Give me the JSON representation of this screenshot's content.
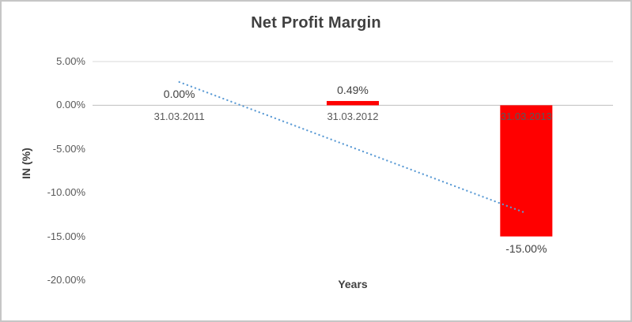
{
  "chart_data": {
    "type": "bar",
    "title": "Net Profit Margin",
    "xlabel": "Years",
    "ylabel": "IN (%)",
    "categories": [
      "31.03.2011",
      "31.03.2012",
      "31.03.2013"
    ],
    "values": [
      0.0,
      0.49,
      -15.0
    ],
    "data_labels": [
      "0.00%",
      "0.49%",
      "-15.00%"
    ],
    "ylim": [
      -20,
      5
    ],
    "y_ticks": [
      {
        "value": 5,
        "label": "5.00%"
      },
      {
        "value": 0,
        "label": "0.00%"
      },
      {
        "value": -5,
        "label": "-5.00%"
      },
      {
        "value": -10,
        "label": "-10.00%"
      },
      {
        "value": -15,
        "label": "-15.00%"
      },
      {
        "value": -20,
        "label": "-20.00%"
      }
    ],
    "gridline_values": [
      5
    ],
    "zero_line_value": 0,
    "legend": "none",
    "bar_color": "#ff0000",
    "trendline": {
      "style": "dotted",
      "color": "#5b9bd5",
      "start_value": 2.66,
      "end_value": -12.34
    },
    "colors": {
      "title": "#404040",
      "axis_title": "#404040",
      "tick_label": "#595959",
      "category_label": "#595959",
      "data_label": "#404040",
      "gridline": "#d9d9d9",
      "zero_line": "#bfbfbf"
    }
  }
}
